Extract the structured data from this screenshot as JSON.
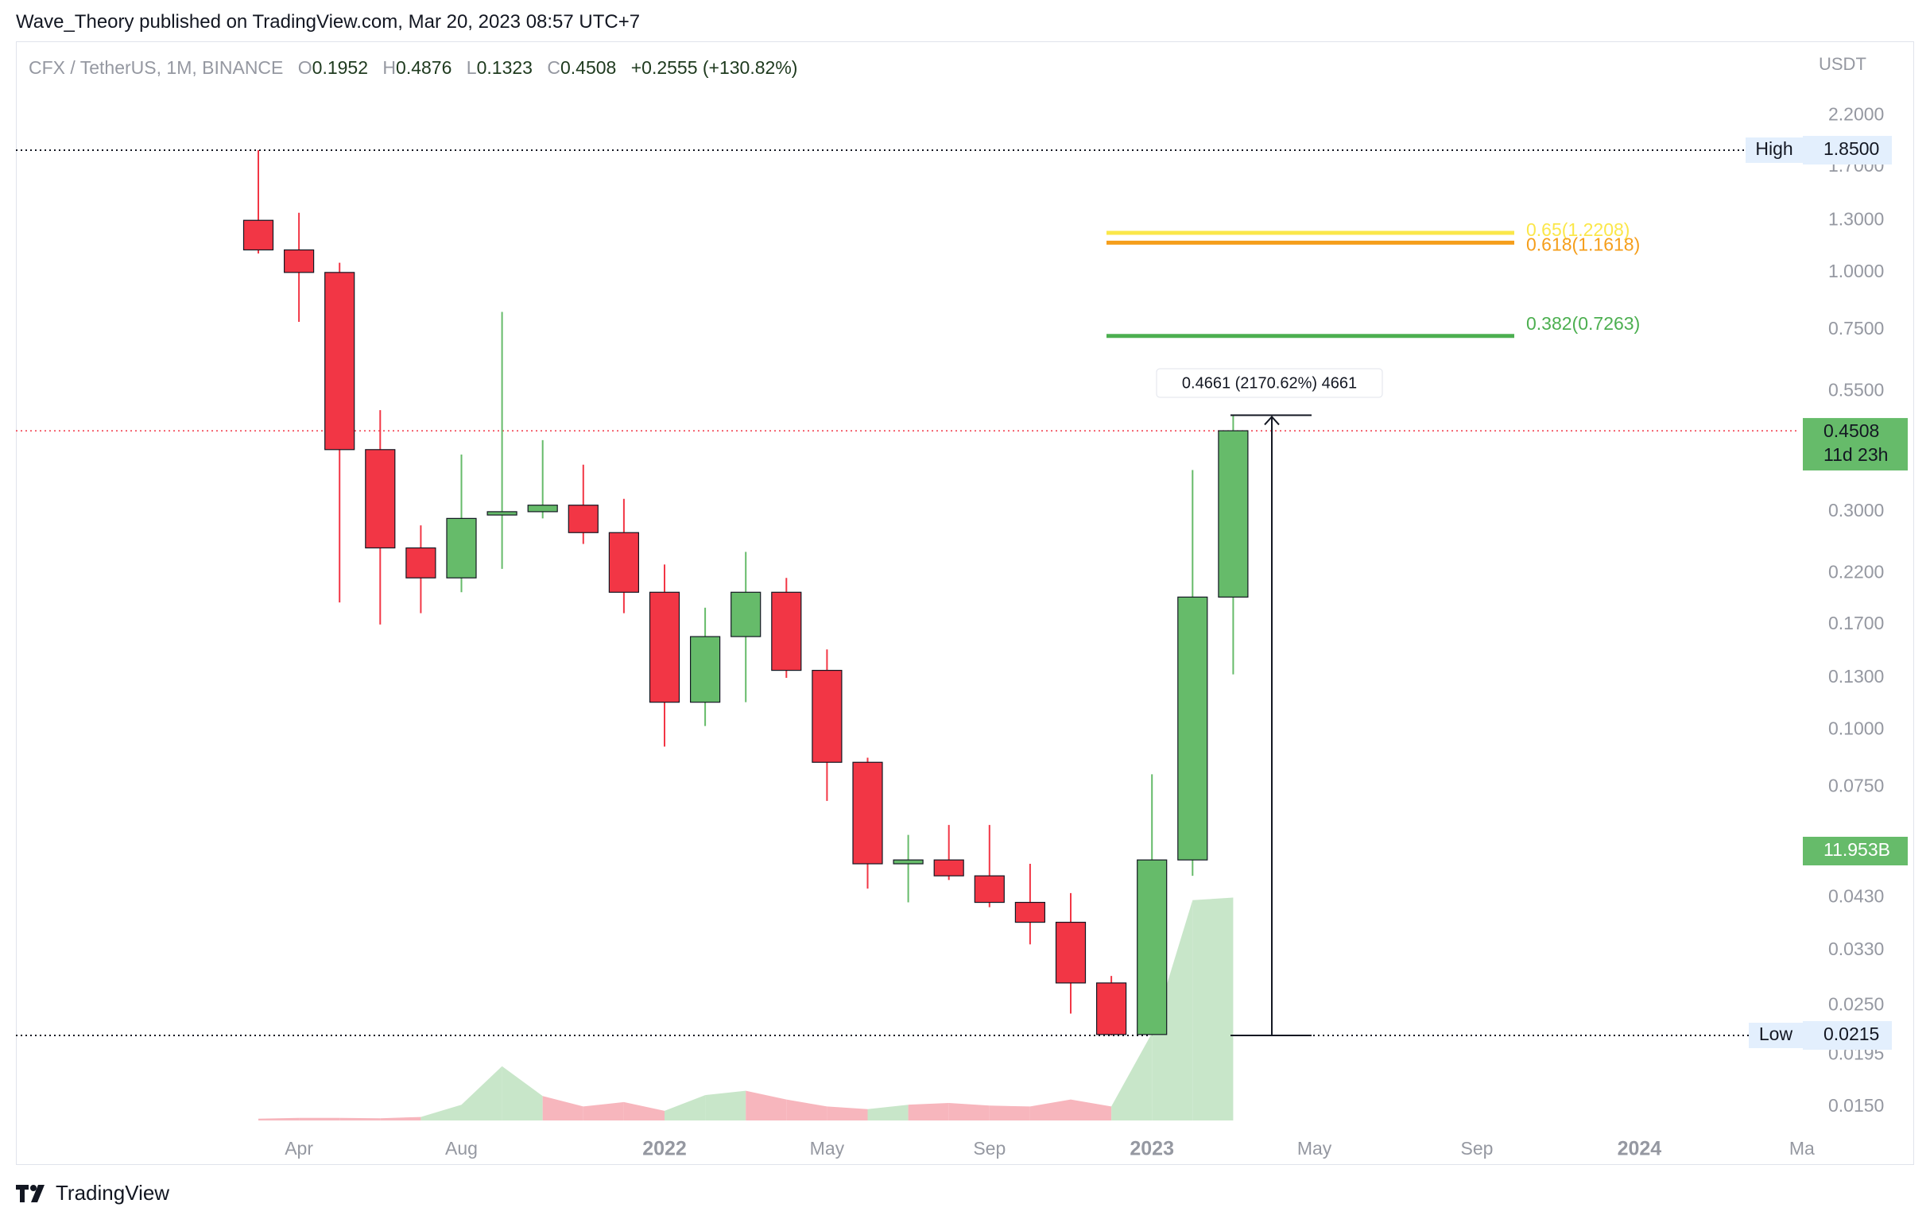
{
  "header": {
    "published": "Wave_Theory published on TradingView.com, Mar 20, 2023 08:57 UTC+7"
  },
  "footer": {
    "brand": "TradingView"
  },
  "legend": {
    "symbol": "CFX / TetherUS, 1M, BINANCE",
    "o_label": "O",
    "o_value": "0.1952",
    "h_label": "H",
    "h_value": "0.4876",
    "l_label": "L",
    "l_value": "0.1323",
    "c_label": "C",
    "c_value": "0.4508",
    "change": "+0.2555 (+130.82%)"
  },
  "axis": {
    "currency": "USDT"
  },
  "colors": {
    "up": "#66bb6a",
    "down": "#f23645",
    "vol_up": "#c8e6c9",
    "vol_down": "#f7b6bd",
    "grid_text": "#9598a1",
    "fib_065": "#fbe74a",
    "fib_0618": "#f59e1b",
    "fib_0382": "#4caf50"
  },
  "chart_data": {
    "type": "candlestick",
    "symbol": "CFX / TetherUS",
    "interval": "1M",
    "exchange": "BINANCE",
    "scale": "log",
    "y_ticks": [
      "2.2000",
      "1.7000",
      "1.3000",
      "1.0000",
      "0.7500",
      "0.5500",
      "0.3000",
      "0.2200",
      "0.1700",
      "0.1300",
      "0.1000",
      "0.0750",
      "0.0430",
      "0.0330",
      "0.0250",
      "0.0195",
      "0.0150"
    ],
    "x_ticks": [
      {
        "label": "Apr",
        "bold": false
      },
      {
        "label": "Aug",
        "bold": false
      },
      {
        "label": "2022",
        "bold": true
      },
      {
        "label": "May",
        "bold": false
      },
      {
        "label": "Sep",
        "bold": false
      },
      {
        "label": "2023",
        "bold": true
      },
      {
        "label": "May",
        "bold": false
      },
      {
        "label": "Sep",
        "bold": false
      },
      {
        "label": "2024",
        "bold": true
      },
      {
        "label": "Ma",
        "bold": false
      }
    ],
    "candles": [
      {
        "date": "2021-03",
        "o": 1.3,
        "h": 1.85,
        "l": 1.1,
        "c": 1.12
      },
      {
        "date": "2021-04",
        "o": 1.12,
        "h": 1.35,
        "l": 0.78,
        "c": 1.0
      },
      {
        "date": "2021-05",
        "o": 1.0,
        "h": 1.05,
        "l": 0.19,
        "c": 0.41
      },
      {
        "date": "2021-06",
        "o": 0.41,
        "h": 0.5,
        "l": 0.17,
        "c": 0.25
      },
      {
        "date": "2021-07",
        "o": 0.25,
        "h": 0.28,
        "l": 0.18,
        "c": 0.215
      },
      {
        "date": "2021-08",
        "o": 0.215,
        "h": 0.4,
        "l": 0.2,
        "c": 0.29
      },
      {
        "date": "2021-09",
        "o": 0.295,
        "h": 0.82,
        "l": 0.225,
        "c": 0.3
      },
      {
        "date": "2021-10",
        "o": 0.3,
        "h": 0.43,
        "l": 0.29,
        "c": 0.31
      },
      {
        "date": "2021-11",
        "o": 0.31,
        "h": 0.38,
        "l": 0.255,
        "c": 0.27
      },
      {
        "date": "2021-12",
        "o": 0.27,
        "h": 0.32,
        "l": 0.18,
        "c": 0.2
      },
      {
        "date": "2022-01",
        "o": 0.2,
        "h": 0.23,
        "l": 0.092,
        "c": 0.115
      },
      {
        "date": "2022-02",
        "o": 0.115,
        "h": 0.185,
        "l": 0.102,
        "c": 0.16
      },
      {
        "date": "2022-03",
        "o": 0.16,
        "h": 0.245,
        "l": 0.115,
        "c": 0.2
      },
      {
        "date": "2022-04",
        "o": 0.2,
        "h": 0.215,
        "l": 0.13,
        "c": 0.135
      },
      {
        "date": "2022-05",
        "o": 0.135,
        "h": 0.15,
        "l": 0.07,
        "c": 0.085
      },
      {
        "date": "2022-06",
        "o": 0.085,
        "h": 0.087,
        "l": 0.045,
        "c": 0.051
      },
      {
        "date": "2022-07",
        "o": 0.051,
        "h": 0.059,
        "l": 0.042,
        "c": 0.052
      },
      {
        "date": "2022-08",
        "o": 0.052,
        "h": 0.062,
        "l": 0.047,
        "c": 0.048
      },
      {
        "date": "2022-09",
        "o": 0.048,
        "h": 0.062,
        "l": 0.041,
        "c": 0.042
      },
      {
        "date": "2022-10",
        "o": 0.042,
        "h": 0.051,
        "l": 0.034,
        "c": 0.038
      },
      {
        "date": "2022-11",
        "o": 0.038,
        "h": 0.044,
        "l": 0.024,
        "c": 0.028
      },
      {
        "date": "2022-12",
        "o": 0.028,
        "h": 0.029,
        "l": 0.0215,
        "c": 0.0216
      },
      {
        "date": "2023-01",
        "o": 0.0216,
        "h": 0.08,
        "l": 0.0216,
        "c": 0.052
      },
      {
        "date": "2023-02",
        "o": 0.052,
        "h": 0.37,
        "l": 0.048,
        "c": 0.1952
      },
      {
        "date": "2023-03",
        "o": 0.1952,
        "h": 0.4876,
        "l": 0.1323,
        "c": 0.4508
      }
    ],
    "volume": {
      "current_label": "11.953B",
      "values": [
        0.02,
        0.03,
        0.03,
        0.025,
        0.04,
        0.18,
        0.62,
        0.28,
        0.16,
        0.21,
        0.11,
        0.29,
        0.34,
        0.24,
        0.16,
        0.13,
        0.18,
        0.2,
        0.17,
        0.16,
        0.24,
        0.16,
        1.0,
        2.52,
        2.55
      ]
    },
    "fibonacci": [
      {
        "label": "0.65(1.2208)",
        "level": 1.2208,
        "color": "#fbe74a"
      },
      {
        "label": "0.618(1.1618)",
        "level": 1.1618,
        "color": "#f59e1b"
      },
      {
        "label": "0.382(0.7263)",
        "level": 0.7263,
        "color": "#4caf50"
      }
    ],
    "high_line": {
      "tag": "High",
      "value": "1.8500",
      "level": 1.85
    },
    "low_line": {
      "tag": "Low",
      "value": "0.0215",
      "level": 0.0215
    },
    "last_price": {
      "value": "0.4508",
      "countdown": "11d 23h",
      "level": 0.4508
    },
    "measure": {
      "label": "0.4661 (2170.62%) 4661",
      "from": 0.0215,
      "to": 0.4876
    }
  }
}
